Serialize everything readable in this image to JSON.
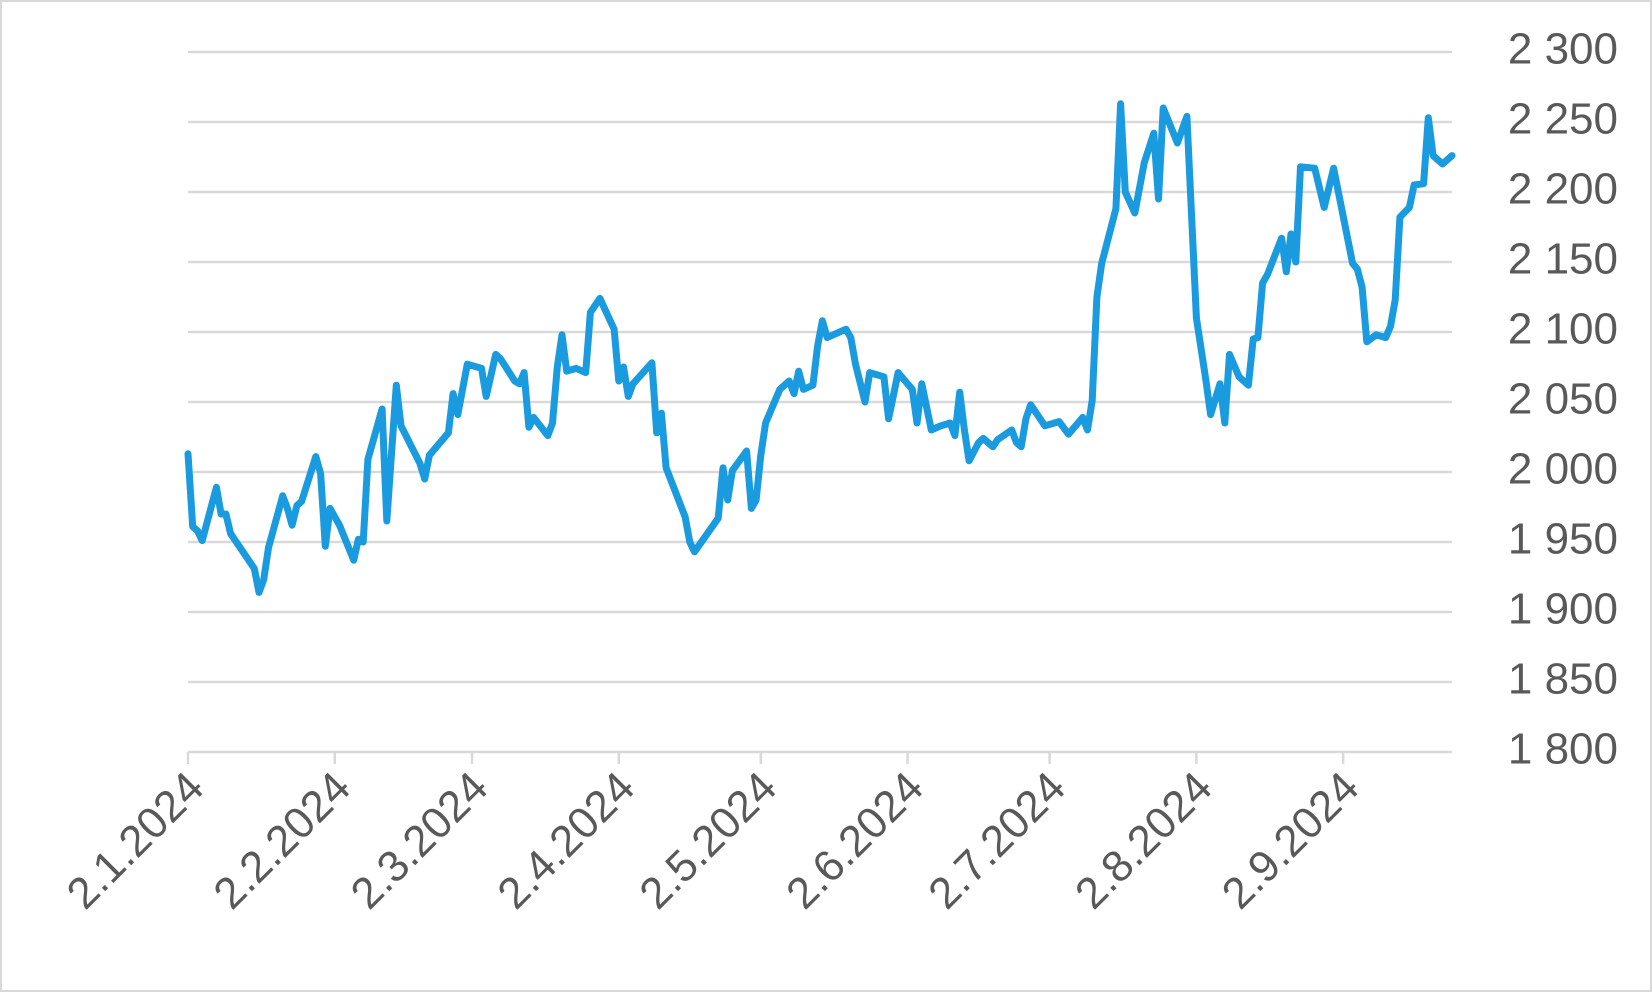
{
  "chart_data": {
    "type": "line",
    "x": [
      "2.1.2024",
      "3.1.2024",
      "4.1.2024",
      "5.1.2024",
      "8.1.2024",
      "9.1.2024",
      "10.1.2024",
      "11.1.2024",
      "16.1.2024",
      "17.1.2024",
      "18.1.2024",
      "19.1.2024",
      "22.1.2024",
      "23.1.2024",
      "24.1.2024",
      "25.1.2024",
      "26.1.2024",
      "29.1.2024",
      "30.1.2024",
      "31.1.2024",
      "1.2.2024",
      "3.2.2024",
      "6.2.2024",
      "7.2.2024",
      "8.2.2024",
      "9.2.2024",
      "12.2.2024",
      "13.2.2024",
      "15.2.2024",
      "16.2.2024",
      "20.2.2024",
      "21.2.2024",
      "22.2.2024",
      "26.2.2024",
      "27.2.2024",
      "28.2.2024",
      "1.3.2024",
      "4.3.2024",
      "5.3.2024",
      "7.3.2024",
      "8.3.2024",
      "11.3.2024",
      "12.3.2024",
      "13.3.2024",
      "14.3.2024",
      "15.3.2024",
      "18.3.2024",
      "19.3.2024",
      "20.3.2024",
      "21.3.2024",
      "22.3.2024",
      "24.3.2024",
      "26.3.2024",
      "27.3.2024",
      "29.3.2024",
      "1.4.2024",
      "2.4.2024",
      "3.4.2024",
      "4.4.2024",
      "5.4.2024",
      "9.4.2024",
      "10.4.2024",
      "11.4.2024",
      "12.4.2024",
      "16.4.2024",
      "17.4.2024",
      "18.4.2024",
      "23.4.2024",
      "24.4.2024",
      "25.4.2024",
      "26.4.2024",
      "29.4.2024",
      "30.4.2024",
      "1.5.2024",
      "2.5.2024",
      "3.5.2024",
      "6.5.2024",
      "8.5.2024",
      "9.5.2024",
      "10.5.2024",
      "11.5.2024",
      "13.5.2024",
      "14.5.2024",
      "15.5.2024",
      "16.5.2024",
      "20.5.2024",
      "21.5.2024",
      "22.5.2024",
      "24.5.2024",
      "25.5.2024",
      "28.5.2024",
      "29.5.2024",
      "31.5.2024",
      "3.6.2024",
      "4.6.2024",
      "5.6.2024",
      "7.6.2024",
      "9.6.2024",
      "11.6.2024",
      "12.6.2024",
      "13.6.2024",
      "14.6.2024",
      "15.6.2024",
      "17.6.2024",
      "18.6.2024",
      "20.6.2024",
      "21.6.2024",
      "24.6.2024",
      "25.6.2024",
      "26.6.2024",
      "27.6.2024",
      "28.6.2024",
      "1.7.2024",
      "4.7.2024",
      "6.7.2024",
      "9.7.2024",
      "10.7.2024",
      "11.7.2024",
      "12.7.2024",
      "13.7.2024",
      "16.7.2024",
      "17.7.2024",
      "18.7.2024",
      "20.7.2024",
      "22.7.2024",
      "24.7.2024",
      "25.7.2024",
      "26.7.2024",
      "29.7.2024",
      "31.7.2024",
      "2.8.2024",
      "4.8.2024",
      "5.8.2024",
      "7.8.2024",
      "8.8.2024",
      "9.8.2024",
      "11.8.2024",
      "13.8.2024",
      "14.8.2024",
      "15.8.2024",
      "16.8.2024",
      "17.8.2024",
      "20.8.2024",
      "21.8.2024",
      "22.8.2024",
      "23.8.2024",
      "24.8.2024",
      "27.8.2024",
      "29.8.2024",
      "31.8.2024",
      "4.9.2024",
      "5.9.2024",
      "6.9.2024",
      "7.9.2024",
      "9.9.2024",
      "11.9.2024",
      "12.9.2024",
      "13.9.2024",
      "14.9.2024",
      "16.9.2024",
      "17.9.2024",
      "19.9.2024",
      "20.9.2024",
      "21.9.2024",
      "23.9.2024",
      "25.9.2024"
    ],
    "series": [
      {
        "color": "#1a9be0",
        "values": [
          2013,
          1961,
          1958,
          1951,
          1989,
          1970,
          1970,
          1956,
          1931,
          1914,
          1923,
          1946,
          1983,
          1974,
          1962,
          1976,
          1979,
          2011,
          1999,
          1947,
          1974,
          1962,
          1937,
          1952,
          1950,
          2009,
          2045,
          1965,
          2062,
          2033,
          2006,
          1995,
          2012,
          2028,
          2056,
          2041,
          2077,
          2074,
          2054,
          2084,
          2081,
          2065,
          2063,
          2071,
          2032,
          2039,
          2026,
          2035,
          2075,
          2098,
          2072,
          2074,
          2071,
          2114,
          2124,
          2102,
          2065,
          2075,
          2054,
          2063,
          2078,
          2028,
          2042,
          2003,
          1968,
          1950,
          1943,
          1967,
          2003,
          1980,
          2001,
          2015,
          1974,
          1980,
          2012,
          2035,
          2059,
          2065,
          2056,
          2072,
          2059,
          2062,
          2090,
          2108,
          2096,
          2102,
          2096,
          2077,
          2050,
          2071,
          2068,
          2038,
          2071,
          2059,
          2035,
          2063,
          2030,
          2033,
          2035,
          2026,
          2057,
          2030,
          2008,
          2021,
          2024,
          2018,
          2023,
          2030,
          2021,
          2018,
          2038,
          2048,
          2033,
          2036,
          2027,
          2039,
          2030,
          2051,
          2125,
          2149,
          2188,
          2263,
          2200,
          2185,
          2221,
          2242,
          2195,
          2260,
          2235,
          2254,
          2110,
          2066,
          2041,
          2063,
          2035,
          2084,
          2068,
          2062,
          2095,
          2096,
          2135,
          2141,
          2167,
          2143,
          2170,
          2150,
          2218,
          2217,
          2189,
          2217,
          2149,
          2145,
          2132,
          2093,
          2098,
          2096,
          2104,
          2123,
          2182,
          2189,
          2205,
          2206,
          2253,
          2226,
          2220,
          2226
        ]
      }
    ],
    "xlim": [
      "2.1.2024",
      "25.9.2024"
    ],
    "xticks": [
      "2.1.2024",
      "2.2.2024",
      "2.3.2024",
      "2.4.2024",
      "2.5.2024",
      "2.6.2024",
      "2.7.2024",
      "2.8.2024",
      "2.9.2024"
    ],
    "ylim": [
      1800,
      2300
    ],
    "yticks": [
      {
        "value": 1800,
        "label": "1 800"
      },
      {
        "value": 1850,
        "label": "1 850"
      },
      {
        "value": 1900,
        "label": "1 900"
      },
      {
        "value": 1950,
        "label": "1 950"
      },
      {
        "value": 2000,
        "label": "2 000"
      },
      {
        "value": 2050,
        "label": "2 050"
      },
      {
        "value": 2100,
        "label": "2 100"
      },
      {
        "value": 2150,
        "label": "2 150"
      },
      {
        "value": 2200,
        "label": "2 200"
      },
      {
        "value": 2250,
        "label": "2 250"
      },
      {
        "value": 2300,
        "label": "2 300"
      }
    ],
    "grid": true
  }
}
